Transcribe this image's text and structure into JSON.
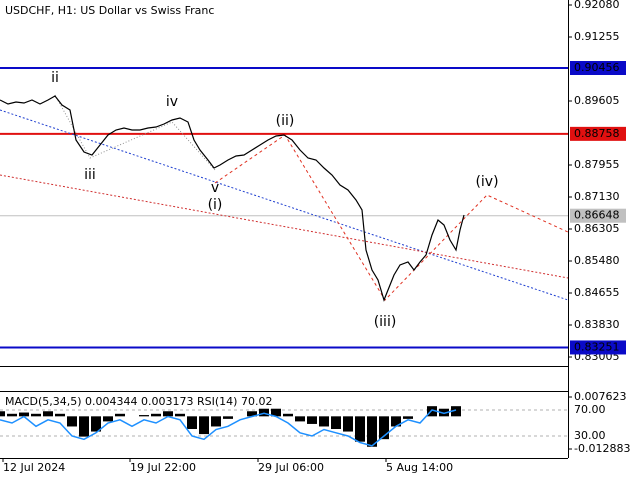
{
  "chart_data": [
    {
      "type": "price",
      "title": "USDCHF, H1:  US Dollar vs Swiss Franc",
      "xlim": [
        0,
        568
      ],
      "ylim": [
        0.82799,
        0.92209
      ],
      "xticks": [
        {
          "value": 3,
          "label": "12 Jul 2024"
        },
        {
          "value": 130,
          "label": "19 Jul 22:00"
        },
        {
          "value": 258,
          "label": "29 Jul 06:00"
        },
        {
          "value": 386,
          "label": "5 Aug 14:00"
        }
      ],
      "yticks": [
        {
          "value": 0.9208,
          "label": "0.92080"
        },
        0.91255,
        0.89605,
        0.87955,
        {
          "value": 0.8713,
          "label": "0.87130"
        },
        0.86305,
        {
          "value": 0.8548,
          "label": "0.85480"
        },
        0.84655,
        {
          "value": 0.8383,
          "label": "0.83830"
        },
        0.83005
      ],
      "x": [
        0,
        8,
        16,
        24,
        32,
        40,
        48,
        55,
        62,
        70,
        76,
        84,
        92,
        100,
        108,
        116,
        124,
        132,
        140,
        148,
        156,
        164,
        172,
        180,
        188,
        194,
        200,
        208,
        214,
        220,
        228,
        236,
        244,
        252,
        260,
        268,
        276,
        284,
        292,
        300,
        308,
        316,
        324,
        332,
        340,
        348,
        356,
        362,
        366,
        372,
        378,
        384,
        388,
        394,
        400,
        408,
        414,
        420,
        426,
        432,
        438,
        444,
        450,
        456,
        460,
        464
      ],
      "series": [
        {
          "color": "#000000",
          "values": [
            0.89631,
            0.89528,
            0.89579,
            0.89554,
            0.89631,
            0.89528,
            0.89631,
            0.89734,
            0.89502,
            0.89373,
            0.886,
            0.8829,
            0.88213,
            0.88471,
            0.88729,
            0.88858,
            0.88909,
            0.88858,
            0.88858,
            0.88909,
            0.88935,
            0.89012,
            0.89115,
            0.89167,
            0.89064,
            0.886,
            0.88342,
            0.88084,
            0.87878,
            0.87955,
            0.88084,
            0.88187,
            0.88213,
            0.88342,
            0.88471,
            0.886,
            0.88703,
            0.88729,
            0.886,
            0.88342,
            0.88136,
            0.88084,
            0.87878,
            0.87697,
            0.8744,
            0.87311,
            0.87053,
            0.86795,
            0.85764,
            0.85248,
            0.84991,
            0.84475,
            0.84733,
            0.85119,
            0.85377,
            0.85455,
            0.85248,
            0.85455,
            0.85635,
            0.86151,
            0.86537,
            0.86408,
            0.86022,
            0.85764,
            0.8628,
            0.86666
          ]
        }
      ],
      "trendlines": [
        {
          "x": [
            0,
            568
          ],
          "values": [
            0.89373,
            0.84475
          ],
          "color": "#2040d0",
          "dash": "2,2"
        },
        {
          "x": [
            0,
            568
          ],
          "values": [
            0.87697,
            0.85042
          ],
          "color": "#d03030",
          "dash": "2,2"
        },
        {
          "x": [
            215,
            285,
            385,
            487,
            568
          ],
          "values": [
            0.87491,
            0.88729,
            0.84475,
            0.87182,
            0.86228
          ],
          "color": "#e03020",
          "dash": "3,3"
        },
        {
          "x": [
            55,
            90,
            172,
            215
          ],
          "values": [
            0.8976,
            0.88136,
            0.89064,
            0.87827
          ],
          "color": "#909090",
          "dash": "1,2"
        }
      ],
      "levels": [
        {
          "value": 0.90456,
          "color": "#0a0ac8"
        },
        {
          "value": 0.88758,
          "color": "#e01010"
        },
        {
          "value": 0.83251,
          "color": "#0a0ac8"
        },
        {
          "value": 0.86648,
          "color": "#c0c0c0"
        }
      ],
      "annotations": [
        {
          "text": "ii",
          "x": 55,
          "y": 0.90198,
          "color": "#808080"
        },
        {
          "text": "iii",
          "x": 90,
          "y": 0.87697,
          "color": "#808080"
        },
        {
          "text": "iv",
          "x": 172,
          "y": 0.89579,
          "color": "#808080"
        },
        {
          "text": "v",
          "x": 215,
          "y": 0.87362,
          "color": "#808080"
        },
        {
          "text": "(i)",
          "x": 215,
          "y": 0.86924,
          "color": "#d02010"
        },
        {
          "text": "(ii)",
          "x": 285,
          "y": 0.8909,
          "color": "#d02010"
        },
        {
          "text": "(iii)",
          "x": 385,
          "y": 0.83908,
          "color": "#d02010"
        },
        {
          "text": "(iv)",
          "x": 487,
          "y": 0.87517,
          "color": "#d02010"
        }
      ]
    },
    {
      "type": "macd",
      "title": "MACD(5,34,5) 0.004344 0.003173 RSI(14) 70.02",
      "xlim": [
        0,
        568
      ],
      "ylim": [
        -0.015641,
        0.009593
      ],
      "yticks": [
        0.007623,
        -0.012883
      ],
      "y2lim": [
        -0.77,
        97.7
      ],
      "y2ticks": [
        {
          "value": 70,
          "label": "70.00"
        },
        {
          "value": 30,
          "label": "30.00"
        }
      ],
      "x": [
        0,
        12,
        24,
        36,
        48,
        60,
        72,
        84,
        96,
        108,
        120,
        132,
        144,
        156,
        168,
        180,
        192,
        204,
        216,
        228,
        240,
        252,
        264,
        276,
        288,
        300,
        312,
        324,
        336,
        348,
        360,
        372,
        384,
        396,
        408,
        420,
        432,
        444,
        456
      ],
      "series": [
        {
          "color": "#000000",
          "values": [
            0.002,
            0.001,
            0.0015,
            0.001,
            0.002,
            0.001,
            -0.004,
            -0.008,
            -0.006,
            -0.002,
            0.001,
            0,
            0.0005,
            0.001,
            0.002,
            0.001,
            -0.005,
            -0.007,
            -0.004,
            -0.001,
            0,
            0.002,
            0.003,
            0.003,
            0.001,
            -0.002,
            -0.003,
            -0.004,
            -0.005,
            -0.006,
            -0.01,
            -0.012,
            -0.009,
            -0.004,
            -0.001,
            0,
            0.004,
            0.003,
            0.004
          ]
        },
        {
          "color": "#1e90ff",
          "axis": "y2",
          "values": [
            55,
            50,
            60,
            45,
            55,
            50,
            30,
            25,
            35,
            50,
            55,
            45,
            55,
            50,
            60,
            55,
            30,
            25,
            40,
            45,
            55,
            60,
            65,
            60,
            50,
            35,
            30,
            40,
            35,
            30,
            20,
            15,
            30,
            45,
            55,
            50,
            70,
            65,
            70
          ]
        }
      ]
    }
  ]
}
